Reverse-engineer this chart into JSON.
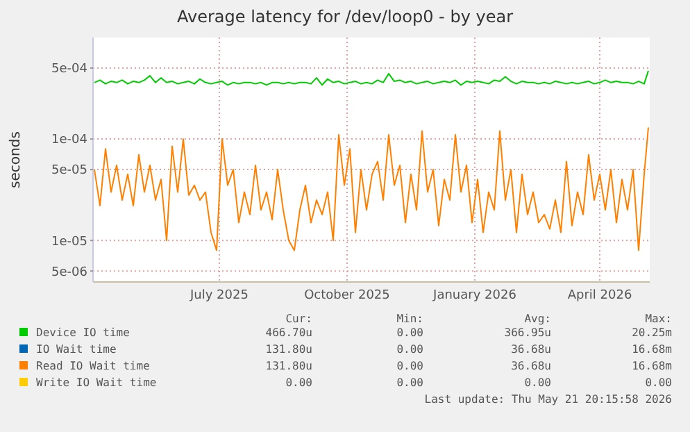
{
  "chart_data": {
    "type": "line",
    "title": "Average latency for /dev/loop0 - by year",
    "ylabel": "seconds",
    "log": "y",
    "grid": true,
    "legend": "bottom",
    "marker": "none",
    "line_style": "solid",
    "xlim": [
      "2025-04-16",
      "2026-05-22"
    ],
    "xticks": [
      {
        "value": "2025-07-16",
        "label": "July 2025"
      },
      {
        "value": "2025-10-16",
        "label": "October 2025"
      },
      {
        "value": "2026-01-16",
        "label": "January 2026"
      },
      {
        "value": "2026-04-16",
        "label": "April 2026"
      }
    ],
    "ylim": [
      3.9e-06,
      0.001
    ],
    "yticks": [
      {
        "value": 5e-06,
        "label": "5e-06"
      },
      {
        "value": 1e-05,
        "label": "1e-05"
      },
      {
        "value": 5e-05,
        "label": "5e-05"
      },
      {
        "value": 0.0001,
        "label": "1e-04"
      },
      {
        "value": 0.0005,
        "label": "5e-04"
      }
    ],
    "x": [
      "2025-04-17",
      "2025-04-21",
      "2025-04-25",
      "2025-04-29",
      "2025-05-03",
      "2025-05-07",
      "2025-05-11",
      "2025-05-15",
      "2025-05-19",
      "2025-05-23",
      "2025-05-27",
      "2025-05-31",
      "2025-06-04",
      "2025-06-08",
      "2025-06-12",
      "2025-06-16",
      "2025-06-20",
      "2025-06-24",
      "2025-06-28",
      "2025-07-02",
      "2025-07-06",
      "2025-07-10",
      "2025-07-14",
      "2025-07-18",
      "2025-07-22",
      "2025-07-26",
      "2025-07-30",
      "2025-08-03",
      "2025-08-07",
      "2025-08-11",
      "2025-08-15",
      "2025-08-19",
      "2025-08-23",
      "2025-08-27",
      "2025-08-31",
      "2025-09-04",
      "2025-09-08",
      "2025-09-12",
      "2025-09-16",
      "2025-09-20",
      "2025-09-24",
      "2025-09-28",
      "2025-10-02",
      "2025-10-06",
      "2025-10-10",
      "2025-10-14",
      "2025-10-18",
      "2025-10-22",
      "2025-10-26",
      "2025-10-30",
      "2025-11-03",
      "2025-11-07",
      "2025-11-11",
      "2025-11-15",
      "2025-11-19",
      "2025-11-23",
      "2025-11-27",
      "2025-12-01",
      "2025-12-05",
      "2025-12-09",
      "2025-12-13",
      "2025-12-17",
      "2025-12-21",
      "2025-12-25",
      "2025-12-29",
      "2026-01-02",
      "2026-01-06",
      "2026-01-10",
      "2026-01-14",
      "2026-01-18",
      "2026-01-22",
      "2026-01-26",
      "2026-01-30",
      "2026-02-03",
      "2026-02-07",
      "2026-02-11",
      "2026-02-15",
      "2026-02-19",
      "2026-02-23",
      "2026-02-27",
      "2026-03-03",
      "2026-03-07",
      "2026-03-11",
      "2026-03-15",
      "2026-03-19",
      "2026-03-23",
      "2026-03-27",
      "2026-03-31",
      "2026-04-04",
      "2026-04-08",
      "2026-04-12",
      "2026-04-16",
      "2026-04-20",
      "2026-04-24",
      "2026-04-28",
      "2026-05-02",
      "2026-05-06",
      "2026-05-10",
      "2026-05-14",
      "2026-05-18",
      "2026-05-21"
    ],
    "series": [
      {
        "name": "Device IO time",
        "color": "#00cc00",
        "values": [
          0.00036,
          0.00038,
          0.00035,
          0.00037,
          0.00036,
          0.00038,
          0.00035,
          0.00037,
          0.00036,
          0.00038,
          0.00042,
          0.00036,
          0.0004,
          0.00036,
          0.00037,
          0.00035,
          0.00036,
          0.00037,
          0.00035,
          0.00039,
          0.00036,
          0.00035,
          0.00036,
          0.00037,
          0.00034,
          0.00036,
          0.00035,
          0.00036,
          0.00036,
          0.00035,
          0.00036,
          0.00034,
          0.00036,
          0.00036,
          0.00035,
          0.00036,
          0.00035,
          0.00036,
          0.00036,
          0.00035,
          0.0004,
          0.00034,
          0.00039,
          0.00036,
          0.00037,
          0.00035,
          0.00036,
          0.00037,
          0.00035,
          0.00036,
          0.00035,
          0.00038,
          0.00036,
          0.00044,
          0.00037,
          0.00038,
          0.00036,
          0.00037,
          0.00035,
          0.00036,
          0.00037,
          0.00035,
          0.00036,
          0.00037,
          0.00036,
          0.00038,
          0.00034,
          0.00037,
          0.00036,
          0.00037,
          0.00036,
          0.00035,
          0.00038,
          0.00037,
          0.00041,
          0.00037,
          0.00035,
          0.00037,
          0.00036,
          0.00036,
          0.00035,
          0.00036,
          0.00035,
          0.00037,
          0.00036,
          0.00035,
          0.00036,
          0.00035,
          0.00036,
          0.00037,
          0.00035,
          0.00036,
          0.00038,
          0.00036,
          0.00037,
          0.00036,
          0.00036,
          0.00035,
          0.00037,
          0.00035,
          0.00047
        ]
      },
      {
        "name": "IO Wait time",
        "color": "#0066b3",
        "values": [
          null,
          null,
          null,
          null,
          null,
          null,
          null,
          null,
          null,
          null,
          null,
          null,
          null,
          null,
          null,
          null,
          null,
          null,
          null,
          null,
          null,
          null,
          null,
          null,
          null,
          null,
          null,
          null,
          null,
          null,
          null,
          null,
          null,
          null,
          null,
          null,
          null,
          null,
          null,
          null,
          null,
          null,
          null,
          null,
          null,
          null,
          null,
          null,
          null,
          null,
          null,
          null,
          null,
          null,
          null,
          null,
          null,
          null,
          null,
          null,
          null,
          null,
          null,
          null,
          null,
          null,
          null,
          null,
          null,
          null,
          null,
          null,
          null,
          null,
          null,
          null,
          null,
          null,
          null,
          null,
          null,
          null,
          null,
          null,
          null,
          null,
          null,
          null,
          null,
          null,
          null,
          null,
          null,
          null,
          null,
          null,
          null,
          null,
          null,
          null,
          null
        ]
      },
      {
        "name": "Read IO Wait time",
        "color": "#ff8000",
        "values": [
          5e-05,
          2.2e-05,
          8e-05,
          3e-05,
          5.5e-05,
          2.5e-05,
          4.5e-05,
          2.2e-05,
          7e-05,
          3e-05,
          5.5e-05,
          2.5e-05,
          4e-05,
          1e-05,
          8.5e-05,
          3e-05,
          0.0001,
          2.8e-05,
          3.5e-05,
          2.5e-05,
          3e-05,
          1.2e-05,
          8e-06,
          0.0001,
          3.5e-05,
          5e-05,
          1.5e-05,
          3e-05,
          1.8e-05,
          5.5e-05,
          2e-05,
          3e-05,
          1.6e-05,
          5e-05,
          2e-05,
          1e-05,
          8e-06,
          2e-05,
          3.5e-05,
          1.5e-05,
          2.5e-05,
          1.8e-05,
          3e-05,
          1e-05,
          0.00011,
          3.5e-05,
          8e-05,
          1.2e-05,
          5e-05,
          2e-05,
          4.5e-05,
          6e-05,
          2.5e-05,
          0.00011,
          3.5e-05,
          5.5e-05,
          1.5e-05,
          4.5e-05,
          2e-05,
          0.00012,
          3e-05,
          5e-05,
          1.4e-05,
          4e-05,
          2.5e-05,
          0.00011,
          3e-05,
          5.5e-05,
          1.5e-05,
          4e-05,
          1.2e-05,
          3e-05,
          2e-05,
          0.00012,
          2.5e-05,
          5e-05,
          1.2e-05,
          4.5e-05,
          1.8e-05,
          3e-05,
          1.5e-05,
          1.8e-05,
          1.3e-05,
          2.5e-05,
          1.2e-05,
          6e-05,
          1.4e-05,
          3e-05,
          1.8e-05,
          7e-05,
          2.5e-05,
          4.5e-05,
          2e-05,
          5e-05,
          1.5e-05,
          4e-05,
          2e-05,
          5e-05,
          8e-06,
          4.5e-05,
          0.00013
        ]
      },
      {
        "name": "Write IO Wait time",
        "color": "#ffcc00",
        "values": [
          null,
          null,
          null,
          null,
          null,
          null,
          null,
          null,
          null,
          null,
          null,
          null,
          null,
          null,
          null,
          null,
          null,
          null,
          null,
          null,
          null,
          null,
          null,
          null,
          null,
          null,
          null,
          null,
          null,
          null,
          null,
          null,
          null,
          null,
          null,
          null,
          null,
          null,
          null,
          null,
          null,
          null,
          null,
          null,
          null,
          null,
          null,
          null,
          null,
          null,
          null,
          null,
          null,
          null,
          null,
          null,
          null,
          null,
          null,
          null,
          null,
          null,
          null,
          null,
          null,
          null,
          null,
          null,
          null,
          null,
          null,
          null,
          null,
          null,
          null,
          null,
          null,
          null,
          null,
          null,
          null,
          null,
          null,
          null,
          null,
          null,
          null,
          null,
          null,
          null,
          null,
          null,
          null,
          null,
          null,
          null,
          null,
          null,
          null,
          null,
          null
        ]
      }
    ],
    "annotations": [
      "Cur:",
      "Min:",
      "Avg:",
      "Max:",
      "466.70u",
      "0.00",
      "366.95u",
      "20.25m",
      "131.80u",
      "0.00",
      "36.68u",
      "16.68m",
      "131.80u",
      "0.00",
      "36.68u",
      "16.68m",
      "0.00",
      "0.00",
      "0.00",
      "0.00",
      "Last update: Thu May 21 20:15:58 2026"
    ]
  }
}
